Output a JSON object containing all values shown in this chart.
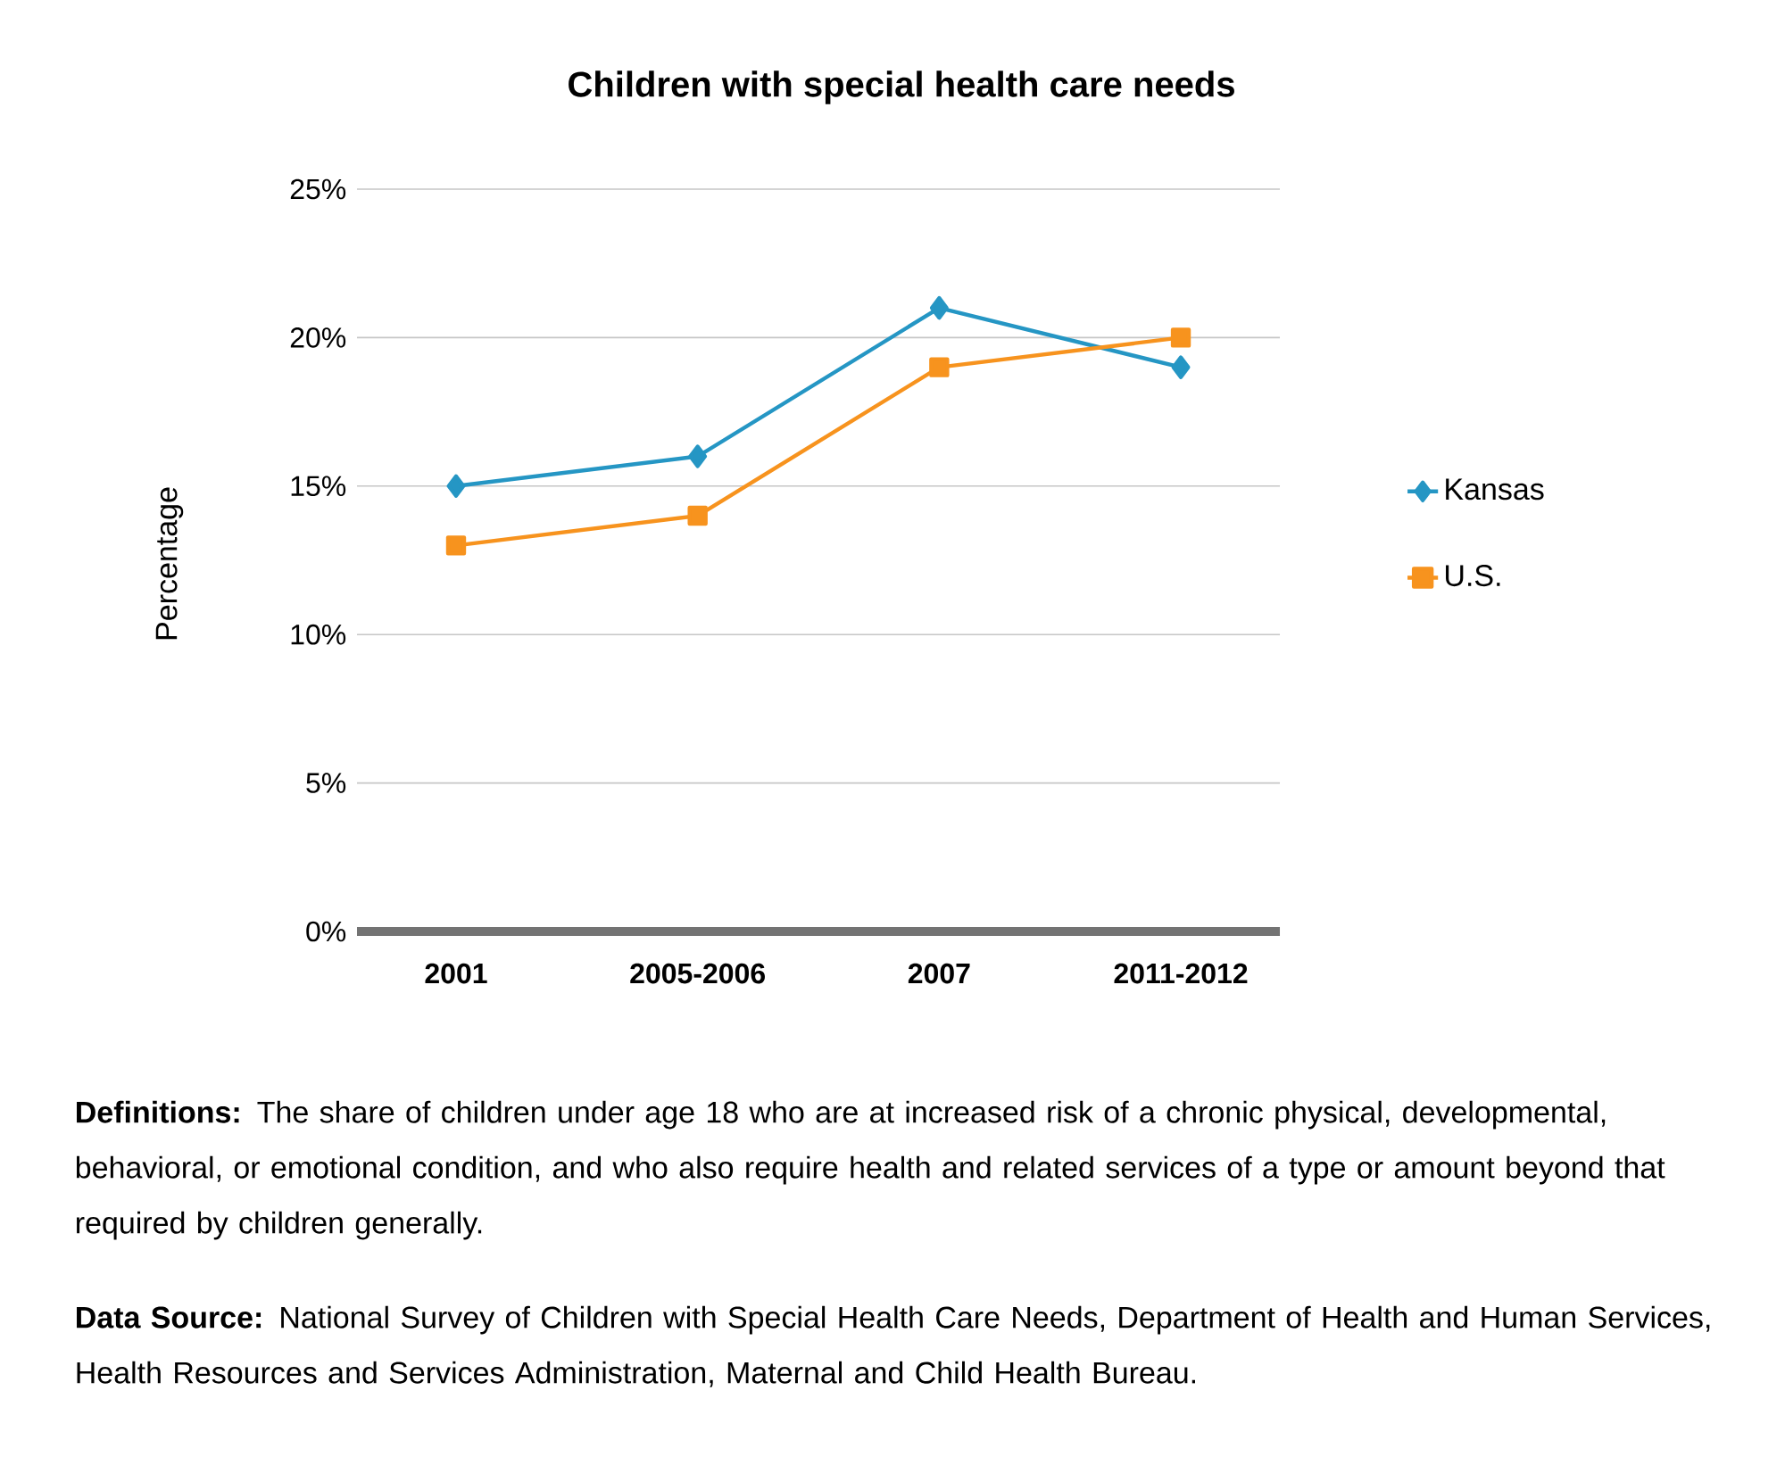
{
  "chart_data": {
    "type": "line",
    "title": "Children with special health care needs",
    "ylabel": "Percentage",
    "categories": [
      "2001",
      "2005-2006",
      "2007",
      "2011-2012"
    ],
    "series": [
      {
        "name": "Kansas",
        "color": "#2596c4",
        "values": [
          15,
          16,
          21,
          19
        ],
        "marker": "diamond"
      },
      {
        "name": "U.S.",
        "color": "#f7931e",
        "values": [
          13,
          14,
          19,
          20
        ],
        "marker": "square"
      }
    ],
    "ylim": [
      0,
      25
    ],
    "yticks": [
      {
        "value": 0,
        "label": "0%"
      },
      {
        "value": 5,
        "label": "5%"
      },
      {
        "value": 10,
        "label": "10%"
      },
      {
        "value": 15,
        "label": "15%"
      },
      {
        "value": 20,
        "label": "20%"
      },
      {
        "value": 25,
        "label": "25%"
      }
    ],
    "grid": "y",
    "legend": "right",
    "line_style": "solid",
    "annotations": [
      "**Definitions:** The share of children under age 18 who are at increased risk of a chronic physical, developmental, behavioral, or emotional condition, and who also require health and related services of a type or amount beyond that required by children generally.",
      "**Data Source:** National Survey of Children with Special Health Care Needs, Department of Health and Human Services, Health Resources and Services Administration, Maternal and Child Health Bureau."
    ]
  }
}
